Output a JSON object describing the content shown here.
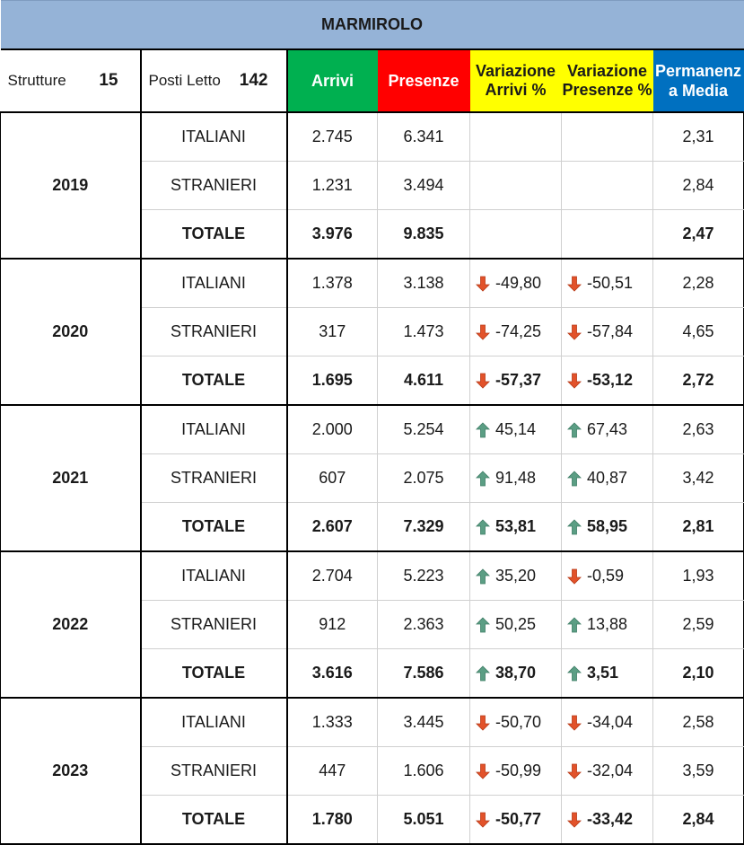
{
  "title": "MARMIROLO",
  "header": {
    "strutture_label": "Strutture",
    "strutture_value": "15",
    "posti_label": "Posti Letto",
    "posti_value": "142",
    "arrivi": "Arrivi",
    "presenze": "Presenze",
    "var_arrivi_l1": "Variazione",
    "var_arrivi_l2": "Arrivi %",
    "var_presenze_l1": "Variazione",
    "var_presenze_l2": "Presenze %",
    "perm_l1": "Permanenz",
    "perm_l2": "a Media"
  },
  "colors": {
    "arrivi": "#00b050",
    "presenze": "#ff0000",
    "variazione": "#ffff00",
    "permanenza": "#0070c0",
    "title": "#95b3d7",
    "arrow_up": "#4e9a7e",
    "arrow_down": "#e2522a"
  },
  "years": [
    {
      "year": "2019",
      "rows": [
        {
          "category": "ITALIANI",
          "arrivi": "2.745",
          "presenze": "6.341",
          "var_arrivi": "",
          "var_arrivi_dir": "",
          "var_presenze": "",
          "var_presenze_dir": "",
          "permanenza": "2,31"
        },
        {
          "category": "STRANIERI",
          "arrivi": "1.231",
          "presenze": "3.494",
          "var_arrivi": "",
          "var_arrivi_dir": "",
          "var_presenze": "",
          "var_presenze_dir": "",
          "permanenza": "2,84"
        },
        {
          "category": "TOTALE",
          "arrivi": "3.976",
          "presenze": "9.835",
          "var_arrivi": "",
          "var_arrivi_dir": "",
          "var_presenze": "",
          "var_presenze_dir": "",
          "permanenza": "2,47"
        }
      ]
    },
    {
      "year": "2020",
      "rows": [
        {
          "category": "ITALIANI",
          "arrivi": "1.378",
          "presenze": "3.138",
          "var_arrivi": "-49,80",
          "var_arrivi_dir": "down-arrow-icon",
          "var_presenze": "-50,51",
          "var_presenze_dir": "down-arrow-icon",
          "permanenza": "2,28"
        },
        {
          "category": "STRANIERI",
          "arrivi": "317",
          "presenze": "1.473",
          "var_arrivi": "-74,25",
          "var_arrivi_dir": "down-arrow-icon",
          "var_presenze": "-57,84",
          "var_presenze_dir": "down-arrow-icon",
          "permanenza": "4,65"
        },
        {
          "category": "TOTALE",
          "arrivi": "1.695",
          "presenze": "4.611",
          "var_arrivi": "-57,37",
          "var_arrivi_dir": "down-arrow-icon",
          "var_presenze": "-53,12",
          "var_presenze_dir": "down-arrow-icon",
          "permanenza": "2,72"
        }
      ]
    },
    {
      "year": "2021",
      "rows": [
        {
          "category": "ITALIANI",
          "arrivi": "2.000",
          "presenze": "5.254",
          "var_arrivi": "45,14",
          "var_arrivi_dir": "up-arrow-icon",
          "var_presenze": "67,43",
          "var_presenze_dir": "up-arrow-icon",
          "permanenza": "2,63"
        },
        {
          "category": "STRANIERI",
          "arrivi": "607",
          "presenze": "2.075",
          "var_arrivi": "91,48",
          "var_arrivi_dir": "up-arrow-icon",
          "var_presenze": "40,87",
          "var_presenze_dir": "up-arrow-icon",
          "permanenza": "3,42"
        },
        {
          "category": "TOTALE",
          "arrivi": "2.607",
          "presenze": "7.329",
          "var_arrivi": "53,81",
          "var_arrivi_dir": "up-arrow-icon",
          "var_presenze": "58,95",
          "var_presenze_dir": "up-arrow-icon",
          "permanenza": "2,81"
        }
      ]
    },
    {
      "year": "2022",
      "rows": [
        {
          "category": "ITALIANI",
          "arrivi": "2.704",
          "presenze": "5.223",
          "var_arrivi": "35,20",
          "var_arrivi_dir": "up-arrow-icon",
          "var_presenze": "-0,59",
          "var_presenze_dir": "down-arrow-icon",
          "permanenza": "1,93"
        },
        {
          "category": "STRANIERI",
          "arrivi": "912",
          "presenze": "2.363",
          "var_arrivi": "50,25",
          "var_arrivi_dir": "up-arrow-icon",
          "var_presenze": "13,88",
          "var_presenze_dir": "up-arrow-icon",
          "permanenza": "2,59"
        },
        {
          "category": "TOTALE",
          "arrivi": "3.616",
          "presenze": "7.586",
          "var_arrivi": "38,70",
          "var_arrivi_dir": "up-arrow-icon",
          "var_presenze": "3,51",
          "var_presenze_dir": "up-arrow-icon",
          "permanenza": "2,10"
        }
      ]
    },
    {
      "year": "2023",
      "rows": [
        {
          "category": "ITALIANI",
          "arrivi": "1.333",
          "presenze": "3.445",
          "var_arrivi": "-50,70",
          "var_arrivi_dir": "down-arrow-icon",
          "var_presenze": "-34,04",
          "var_presenze_dir": "down-arrow-icon",
          "permanenza": "2,58"
        },
        {
          "category": "STRANIERI",
          "arrivi": "447",
          "presenze": "1.606",
          "var_arrivi": "-50,99",
          "var_arrivi_dir": "down-arrow-icon",
          "var_presenze": "-32,04",
          "var_presenze_dir": "down-arrow-icon",
          "permanenza": "3,59"
        },
        {
          "category": "TOTALE",
          "arrivi": "1.780",
          "presenze": "5.051",
          "var_arrivi": "-50,77",
          "var_arrivi_dir": "down-arrow-icon",
          "var_presenze": "-33,42",
          "var_presenze_dir": "down-arrow-icon",
          "permanenza": "2,84"
        }
      ]
    }
  ]
}
